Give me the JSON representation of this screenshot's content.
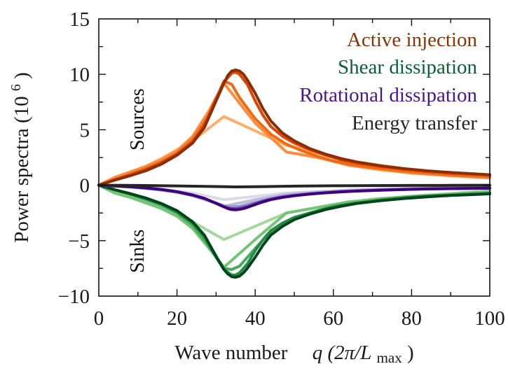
{
  "chart_data": {
    "type": "line",
    "title": "",
    "xlabel": "Wave number",
    "xlabel_math": "q (2π/L",
    "xlabel_math_sub": "max",
    "xlabel_math_close": ")",
    "ylabel": "Power spectra (10",
    "ylabel_sup": "6",
    "ylabel_close": ")",
    "xlim": [
      0,
      100
    ],
    "ylim": [
      -10,
      15
    ],
    "xticks": [
      0,
      20,
      40,
      60,
      80,
      100
    ],
    "xticks_minor": [
      10,
      30,
      50,
      70,
      90
    ],
    "yticks": [
      -10,
      -5,
      0,
      5,
      10,
      15
    ],
    "yticks_minor": [
      -7.5,
      -2.5,
      2.5,
      7.5,
      12.5
    ],
    "ytick_labels": [
      "−10",
      "−5",
      "0",
      "5",
      "10",
      "15"
    ],
    "xtick_labels": [
      "0",
      "20",
      "40",
      "60",
      "80",
      "100"
    ],
    "grid": false,
    "legend_placement": "top-right",
    "annotations": [
      {
        "text": "Sources",
        "region": "upper-left",
        "rotation": "vertical"
      },
      {
        "text": "Sinks",
        "region": "lower-left",
        "rotation": "vertical"
      }
    ],
    "groups": [
      {
        "name": "Active injection",
        "label_color": "#8c3206",
        "series": [
          {
            "name": "Active injection (coarsest)",
            "color": "#fdae6b",
            "x": [
              0,
              8,
              16,
              24,
              32,
              48,
              64,
              80,
              100
            ],
            "y": [
              0,
              1.0,
              2.4,
              4.0,
              6.2,
              3.6,
              2.2,
              1.4,
              0.7
            ]
          },
          {
            "name": "Active injection (coarse)",
            "color": "#fd8d3c",
            "x": [
              0,
              4,
              8,
              12,
              16,
              20,
              24,
              28,
              32,
              40,
              48,
              56,
              64,
              72,
              80,
              90,
              100
            ],
            "y": [
              0,
              0.7,
              1.2,
              1.7,
              2.3,
              3.1,
              4.4,
              6.6,
              9.2,
              5.6,
              3.0,
              2.5,
              1.8,
              1.4,
              1.1,
              0.85,
              0.65
            ]
          },
          {
            "name": "Active injection (medium)",
            "color": "#f16913",
            "x": [
              0,
              4,
              8,
              12,
              16,
              20,
              24,
              28,
              32,
              34,
              36,
              40,
              44,
              48,
              52,
              56,
              60,
              64,
              70,
              76,
              82,
              88,
              94,
              100
            ],
            "y": [
              0,
              0.5,
              1.0,
              1.5,
              2.1,
              2.9,
              4.1,
              6.2,
              9.4,
              9.1,
              7.9,
              6.0,
              4.6,
              3.7,
              3.1,
              2.6,
              2.2,
              1.9,
              1.6,
              1.35,
              1.15,
              1.0,
              0.88,
              0.78
            ]
          },
          {
            "name": "Active injection (fine)",
            "color": "#d94801",
            "x": [
              0,
              4,
              8,
              12,
              16,
              20,
              24,
              27,
              30,
              32,
              34,
              35,
              36,
              38,
              40,
              42,
              44,
              47,
              50,
              54,
              58,
              62,
              66,
              72,
              78,
              84,
              90,
              100
            ],
            "y": [
              0,
              0.5,
              0.9,
              1.4,
              2.0,
              2.8,
              3.9,
              5.4,
              7.8,
              9.3,
              10.1,
              10.2,
              10.0,
              9.1,
              7.6,
              6.3,
              5.3,
              4.4,
              3.8,
              3.2,
              2.7,
              2.3,
              2.0,
              1.7,
              1.45,
              1.25,
              1.1,
              0.9
            ]
          },
          {
            "name": "Active injection (finest)",
            "color": "#8c2d04",
            "x": [
              0,
              4,
              8,
              12,
              16,
              20,
              24,
              27,
              30,
              32,
              33,
              34,
              35,
              36,
              37,
              38,
              40,
              42,
              44,
              47,
              50,
              54,
              58,
              62,
              66,
              72,
              78,
              84,
              90,
              100
            ],
            "y": [
              0,
              0.45,
              0.85,
              1.3,
              1.9,
              2.7,
              3.8,
              5.2,
              7.6,
              9.2,
              9.9,
              10.3,
              10.4,
              10.3,
              10.0,
              9.5,
              8.3,
              6.9,
              5.8,
              4.7,
              4.0,
              3.3,
              2.8,
              2.4,
              2.1,
              1.75,
              1.5,
              1.3,
              1.15,
              0.95
            ]
          }
        ]
      },
      {
        "name": "Shear dissipation",
        "label_color": "#0b5e36",
        "series": [
          {
            "name": "Shear dissipation (coarsest)",
            "color": "#a1d99b",
            "x": [
              0,
              8,
              16,
              24,
              32,
              48,
              64,
              80,
              100
            ],
            "y": [
              0,
              -0.9,
              -1.9,
              -3.3,
              -4.9,
              -2.5,
              -1.5,
              -1.0,
              -0.5
            ]
          },
          {
            "name": "Shear dissipation (coarse)",
            "color": "#74c476",
            "x": [
              0,
              4,
              8,
              12,
              16,
              20,
              24,
              28,
              32,
              40,
              48,
              56,
              64,
              72,
              80,
              90,
              100
            ],
            "y": [
              0,
              -0.7,
              -1.1,
              -1.6,
              -2.1,
              -2.8,
              -3.9,
              -5.6,
              -7.4,
              -4.9,
              -2.5,
              -2.0,
              -1.5,
              -1.2,
              -1.0,
              -0.8,
              -0.6
            ]
          },
          {
            "name": "Shear dissipation (medium)",
            "color": "#41ab5d",
            "x": [
              0,
              4,
              8,
              12,
              16,
              20,
              24,
              28,
              32,
              34,
              36,
              40,
              44,
              48,
              52,
              56,
              60,
              64,
              70,
              76,
              82,
              88,
              94,
              100
            ],
            "y": [
              0,
              -0.4,
              -0.8,
              -1.3,
              -1.8,
              -2.5,
              -3.6,
              -5.4,
              -7.5,
              -7.6,
              -7.3,
              -5.7,
              -4.2,
              -3.3,
              -2.7,
              -2.3,
              -1.9,
              -1.7,
              -1.4,
              -1.2,
              -1.0,
              -0.9,
              -0.8,
              -0.7
            ]
          },
          {
            "name": "Shear dissipation (fine)",
            "color": "#238b45",
            "x": [
              0,
              4,
              8,
              12,
              16,
              20,
              24,
              27,
              30,
              32,
              34,
              35,
              36,
              38,
              40,
              42,
              44,
              47,
              50,
              54,
              58,
              62,
              66,
              72,
              78,
              84,
              90,
              100
            ],
            "y": [
              0,
              -0.4,
              -0.8,
              -1.2,
              -1.7,
              -2.4,
              -3.4,
              -4.6,
              -6.5,
              -7.6,
              -8.1,
              -8.1,
              -7.9,
              -7.1,
              -5.9,
              -4.9,
              -4.1,
              -3.4,
              -2.9,
              -2.5,
              -2.1,
              -1.8,
              -1.6,
              -1.35,
              -1.15,
              -1.0,
              -0.9,
              -0.75
            ]
          },
          {
            "name": "Shear dissipation (finest)",
            "color": "#00441b",
            "x": [
              0,
              4,
              8,
              12,
              16,
              20,
              24,
              27,
              30,
              32,
              33,
              34,
              35,
              36,
              37,
              38,
              40,
              42,
              44,
              47,
              50,
              54,
              58,
              62,
              66,
              72,
              78,
              84,
              90,
              100
            ],
            "y": [
              0,
              -0.4,
              -0.75,
              -1.15,
              -1.65,
              -2.3,
              -3.3,
              -4.5,
              -6.4,
              -7.6,
              -8.0,
              -8.25,
              -8.3,
              -8.2,
              -7.9,
              -7.5,
              -6.5,
              -5.4,
              -4.5,
              -3.7,
              -3.1,
              -2.6,
              -2.2,
              -1.9,
              -1.65,
              -1.4,
              -1.2,
              -1.05,
              -0.92,
              -0.78
            ]
          }
        ]
      },
      {
        "name": "Rotational dissipation",
        "label_color": "#4b1488",
        "series": [
          {
            "name": "Rotational dissipation (coarsest)",
            "color": "#dadaeb",
            "x": [
              0,
              8,
              16,
              24,
              32,
              48,
              64,
              80,
              100
            ],
            "y": [
              0,
              -0.15,
              -0.35,
              -0.7,
              -1.3,
              -0.7,
              -0.45,
              -0.3,
              -0.15
            ]
          },
          {
            "name": "Rotational dissipation (coarse)",
            "color": "#bcbddc",
            "x": [
              0,
              4,
              8,
              12,
              16,
              20,
              24,
              28,
              32,
              40,
              48,
              56,
              64,
              72,
              80,
              90,
              100
            ],
            "y": [
              0,
              -0.08,
              -0.18,
              -0.3,
              -0.45,
              -0.65,
              -0.95,
              -1.4,
              -1.9,
              -1.3,
              -0.8,
              -0.6,
              -0.45,
              -0.35,
              -0.28,
              -0.22,
              -0.18
            ]
          },
          {
            "name": "Rotational dissipation (medium)",
            "color": "#9e9ac8",
            "x": [
              0,
              4,
              8,
              12,
              16,
              20,
              24,
              28,
              32,
              34,
              36,
              40,
              44,
              48,
              52,
              56,
              60,
              64,
              70,
              76,
              82,
              88,
              94,
              100
            ],
            "y": [
              0,
              -0.07,
              -0.15,
              -0.27,
              -0.42,
              -0.62,
              -0.92,
              -1.35,
              -1.85,
              -1.95,
              -1.9,
              -1.55,
              -1.2,
              -0.95,
              -0.8,
              -0.68,
              -0.58,
              -0.5,
              -0.42,
              -0.36,
              -0.31,
              -0.27,
              -0.24,
              -0.22
            ]
          },
          {
            "name": "Rotational dissipation (fine)",
            "color": "#6a51a3",
            "x": [
              0,
              4,
              8,
              12,
              16,
              20,
              24,
              27,
              30,
              32,
              34,
              35,
              36,
              38,
              40,
              42,
              44,
              47,
              50,
              54,
              58,
              62,
              66,
              72,
              78,
              84,
              90,
              100
            ],
            "y": [
              0,
              -0.06,
              -0.14,
              -0.25,
              -0.4,
              -0.6,
              -0.9,
              -1.2,
              -1.65,
              -1.95,
              -2.1,
              -2.1,
              -2.05,
              -1.9,
              -1.65,
              -1.42,
              -1.25,
              -1.05,
              -0.92,
              -0.78,
              -0.67,
              -0.58,
              -0.51,
              -0.44,
              -0.38,
              -0.33,
              -0.3,
              -0.26
            ]
          },
          {
            "name": "Rotational dissipation (finest)",
            "color": "#3f007d",
            "x": [
              0,
              4,
              8,
              12,
              16,
              20,
              24,
              27,
              30,
              32,
              33,
              34,
              35,
              36,
              37,
              38,
              40,
              42,
              44,
              47,
              50,
              54,
              58,
              62,
              66,
              72,
              78,
              84,
              90,
              100
            ],
            "y": [
              0,
              -0.06,
              -0.13,
              -0.24,
              -0.38,
              -0.58,
              -0.88,
              -1.18,
              -1.62,
              -1.95,
              -2.1,
              -2.2,
              -2.22,
              -2.18,
              -2.1,
              -2.0,
              -1.75,
              -1.5,
              -1.3,
              -1.1,
              -0.95,
              -0.8,
              -0.69,
              -0.6,
              -0.53,
              -0.45,
              -0.39,
              -0.34,
              -0.31,
              -0.27
            ]
          }
        ]
      },
      {
        "name": "Energy transfer",
        "label_color": "#262626",
        "series": [
          {
            "name": "Energy transfer",
            "color": "#252525",
            "x": [
              0,
              10,
              20,
              30,
              35,
              40,
              50,
              60,
              70,
              80,
              90,
              100
            ],
            "y": [
              0,
              -0.02,
              -0.06,
              -0.12,
              -0.15,
              -0.13,
              -0.08,
              -0.05,
              -0.03,
              -0.02,
              -0.01,
              0
            ]
          }
        ]
      }
    ]
  }
}
